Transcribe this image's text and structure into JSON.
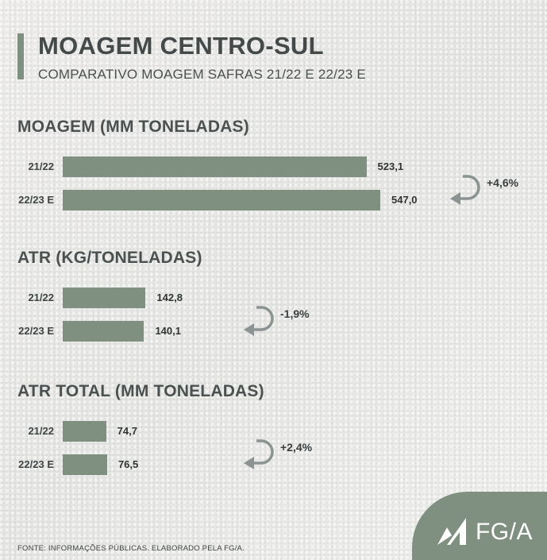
{
  "header": {
    "title": "MOAGEM CENTRO-SUL",
    "subtitle": "COMPARATIVO MOAGEM SAFRAS 21/22 E 22/23 E"
  },
  "colors": {
    "bar": "#7f8f80",
    "text": "#444a4a"
  },
  "chart_data": [
    {
      "type": "bar",
      "orientation": "horizontal",
      "title": "MOAGEM (MM TONELADAS)",
      "categories": [
        "21/22",
        "22/23 E"
      ],
      "values": [
        523.1,
        547.0
      ],
      "value_labels": [
        "523,1",
        "547,0"
      ],
      "change": "+4,6%"
    },
    {
      "type": "bar",
      "orientation": "horizontal",
      "title": "ATR (KG/TONELADAS)",
      "categories": [
        "21/22",
        "22/23 E"
      ],
      "values": [
        142.8,
        140.1
      ],
      "value_labels": [
        "142,8",
        "140,1"
      ],
      "change": "-1,9%"
    },
    {
      "type": "bar",
      "orientation": "horizontal",
      "title": "ATR TOTAL (MM TONELADAS)",
      "categories": [
        "21/22",
        "22/23 E"
      ],
      "values": [
        74.7,
        76.5
      ],
      "value_labels": [
        "74,7",
        "76,5"
      ],
      "change": "+2,4%"
    }
  ],
  "footer": {
    "source": "FONTE: INFORMAÇÕES PÚBLICAS. ELABORADO PELA FG/A."
  },
  "logo": {
    "text": "FG/A",
    "icon": "fga-logo-icon"
  }
}
